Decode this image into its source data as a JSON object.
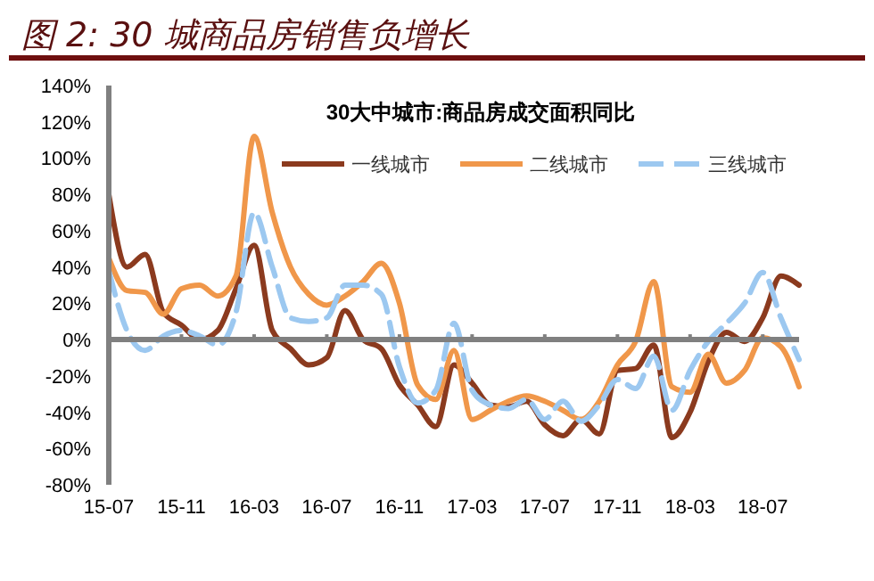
{
  "chart_data": {
    "type": "line",
    "title": "图 2: 30 城商品房销售负增长",
    "subtitle": "30大中城市:商品房成交面积同比",
    "categories": [
      "15-07",
      null,
      null,
      null,
      "15-11",
      null,
      null,
      null,
      "16-03",
      null,
      null,
      null,
      "16-07",
      null,
      null,
      null,
      "16-11",
      null,
      null,
      null,
      "17-03",
      null,
      null,
      null,
      "17-07",
      null,
      null,
      null,
      "17-11",
      null,
      null,
      null,
      "18-03",
      null,
      null,
      null,
      "18-07",
      null,
      null
    ],
    "ylim": [
      -80,
      140
    ],
    "yticks": [
      {
        "value": -80,
        "label": "-80%"
      },
      {
        "value": -60,
        "label": "-60%"
      },
      {
        "value": -40,
        "label": "-40%"
      },
      {
        "value": -20,
        "label": "-20%"
      },
      {
        "value": 0,
        "label": "0%"
      },
      {
        "value": 20,
        "label": "20%"
      },
      {
        "value": 40,
        "label": "40%"
      },
      {
        "value": 60,
        "label": "60%"
      },
      {
        "value": 80,
        "label": "80%"
      },
      {
        "value": 100,
        "label": "100%"
      },
      {
        "value": 120,
        "label": "120%"
      },
      {
        "value": 140,
        "label": "140%"
      }
    ],
    "legend": "top",
    "series": [
      {
        "name": "一线城市",
        "color": "#8b3a1e",
        "line_style": "solid",
        "values": [
          80,
          40,
          47,
          15,
          8,
          0,
          5,
          28,
          52,
          5,
          -5,
          -14,
          -10,
          16,
          0,
          -5,
          -25,
          -36,
          -48,
          -14,
          -24,
          -36,
          -37,
          -34,
          -47,
          -53,
          -44,
          -52,
          -17,
          -16,
          -3,
          -54,
          -40,
          -12,
          4,
          -1,
          12,
          35,
          30
        ]
      },
      {
        "name": "二线城市",
        "color": "#f0974a",
        "line_style": "solid",
        "values": [
          45,
          27,
          26,
          14,
          28,
          30,
          24,
          35,
          112,
          70,
          40,
          25,
          19,
          24,
          32,
          42,
          20,
          -25,
          -33,
          -6,
          -44,
          -39,
          -34,
          -31,
          -34,
          -39,
          -44,
          -34,
          -14,
          -1,
          32,
          -26,
          -29,
          -8,
          -24,
          -17,
          1,
          -4,
          -26
        ]
      },
      {
        "name": "三线城市",
        "color": "#9cc8f0",
        "line_style": "dashed",
        "values": [
          38,
          5,
          -6,
          2,
          5,
          2,
          -3,
          15,
          70,
          40,
          12,
          10,
          12,
          30,
          30,
          25,
          -15,
          -35,
          -28,
          9,
          -28,
          -36,
          -38,
          -33,
          -44,
          -34,
          -45,
          -36,
          -22,
          -27,
          -9,
          -39,
          -17,
          -1,
          9,
          20,
          37,
          12,
          -11
        ]
      }
    ]
  }
}
